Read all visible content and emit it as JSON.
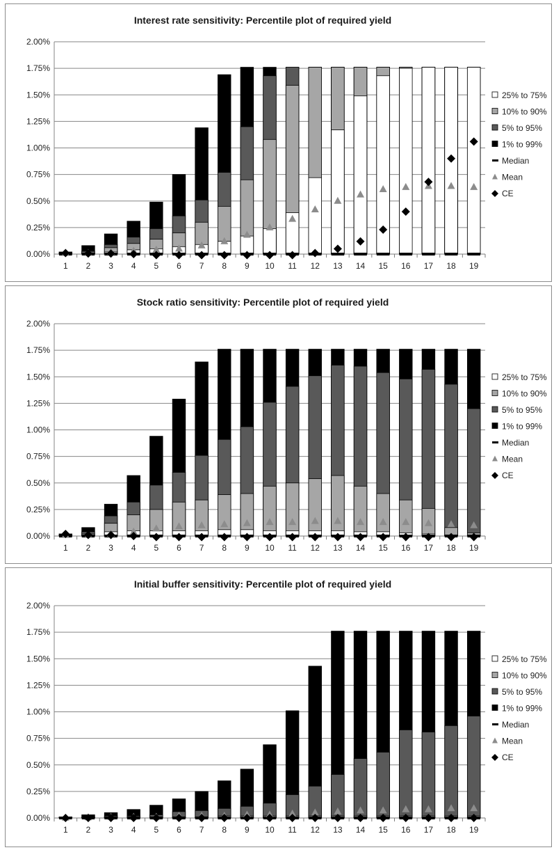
{
  "chart_data": [
    {
      "type": "bar",
      "title": "Interest rate sensitivity: Percentile plot of required yield",
      "xlabel": "",
      "ylabel": "",
      "ylim": [
        0,
        0.02
      ],
      "yticks": [
        "0.00%",
        "0.25%",
        "0.50%",
        "0.75%",
        "1.00%",
        "1.25%",
        "1.50%",
        "1.75%",
        "2.00%"
      ],
      "categories": [
        "1",
        "2",
        "3",
        "4",
        "5",
        "6",
        "7",
        "8",
        "9",
        "10",
        "11",
        "12",
        "13",
        "14",
        "15",
        "16",
        "17",
        "18",
        "19"
      ],
      "grid": true,
      "legend_position": "right",
      "legend": [
        "25% to 75%",
        "10% to 90%",
        "5% to 95%",
        "1% to 99%",
        "Median",
        "Mean",
        "CE"
      ],
      "series": [
        {
          "name": "1% to 99%",
          "low": [
            0,
            0,
            0,
            0,
            0,
            0,
            0,
            0,
            0,
            0,
            0,
            0,
            0,
            0,
            0,
            0,
            0,
            0,
            0
          ],
          "high": [
            0.0002,
            0.0008,
            0.0019,
            0.0031,
            0.0049,
            0.0075,
            0.0119,
            0.0169,
            0.0176,
            0.0176,
            0.0176,
            0.0176,
            0.0176,
            0.0176,
            0.0176,
            0.0176,
            0.0176,
            0.0176,
            0.0176
          ]
        },
        {
          "name": "5% to 95%",
          "low": [
            0,
            0,
            0,
            0,
            0,
            0,
            0,
            0,
            0,
            0,
            0,
            0,
            0,
            0,
            0,
            0,
            0,
            0,
            0
          ],
          "high": [
            0.0001,
            0.0003,
            0.0009,
            0.0016,
            0.0024,
            0.0036,
            0.0051,
            0.0077,
            0.012,
            0.0168,
            0.0176,
            0.0176,
            0.0176,
            0.0176,
            0.0176,
            0.0176,
            0.0176,
            0.0176,
            0.0176
          ]
        },
        {
          "name": "10% to 90%",
          "low": [
            0,
            0,
            0,
            0,
            0,
            0,
            0,
            0,
            0,
            0,
            0,
            0,
            0,
            0,
            0,
            0,
            0,
            0,
            0
          ],
          "high": [
            5e-05,
            0.0002,
            0.0006,
            0.001,
            0.0014,
            0.002,
            0.003,
            0.0045,
            0.007,
            0.0108,
            0.0159,
            0.0176,
            0.0176,
            0.0176,
            0.0176,
            0.0176,
            0.0176,
            0.0176,
            0.0176
          ]
        },
        {
          "name": "25% to 75%",
          "low": [
            0,
            0,
            0,
            0,
            0,
            0,
            0,
            0,
            0,
            0,
            0,
            0,
            0,
            0,
            0,
            0,
            0,
            0,
            0
          ],
          "high": [
            2e-05,
            0.0001,
            0.0002,
            0.0004,
            0.0005,
            0.0007,
            0.0009,
            0.0012,
            0.0017,
            0.0024,
            0.0039,
            0.0072,
            0.0117,
            0.0149,
            0.0168,
            0.0175,
            0.0176,
            0.0176,
            0.0176
          ]
        },
        {
          "name": "Median",
          "values": [
            0,
            0,
            0,
            0,
            0,
            0,
            0,
            0,
            0,
            0,
            0,
            0,
            0,
            0,
            0,
            0,
            0,
            0,
            0
          ]
        },
        {
          "name": "Mean",
          "values": [
            0.0001,
            0.0001,
            0.0002,
            0.0003,
            0.0004,
            0.0005,
            0.0008,
            0.0012,
            0.0018,
            0.0025,
            0.0033,
            0.0042,
            0.005,
            0.0056,
            0.0061,
            0.0063,
            0.0064,
            0.0064,
            0.0063
          ]
        },
        {
          "name": "CE",
          "values": [
            0.0001,
            5e-05,
            5e-05,
            0,
            -0.0001,
            -0.0001,
            -0.0001,
            -0.0001,
            -0.0001,
            -0.0001,
            -0.0001,
            0.0001,
            0.0005,
            0.0012,
            0.0023,
            0.004,
            0.0068,
            0.009,
            0.0106
          ]
        }
      ]
    },
    {
      "type": "bar",
      "title": "Stock ratio sensitivity: Percentile plot of required yield",
      "xlabel": "",
      "ylabel": "",
      "ylim": [
        0,
        0.02
      ],
      "yticks": [
        "0.00%",
        "0.25%",
        "0.50%",
        "0.75%",
        "1.00%",
        "1.25%",
        "1.50%",
        "1.75%",
        "2.00%"
      ],
      "categories": [
        "1",
        "2",
        "3",
        "4",
        "5",
        "6",
        "7",
        "8",
        "9",
        "10",
        "11",
        "12",
        "13",
        "14",
        "15",
        "16",
        "17",
        "18",
        "19"
      ],
      "grid": true,
      "legend_position": "right",
      "legend": [
        "25% to 75%",
        "10% to 90%",
        "5% to 95%",
        "1% to 99%",
        "Median",
        "Mean",
        "CE"
      ],
      "series": [
        {
          "name": "1% to 99%",
          "low": [
            0,
            0,
            0,
            0,
            0,
            0,
            0,
            0,
            0,
            0,
            0,
            0,
            0,
            0,
            0,
            0,
            0,
            0,
            0
          ],
          "high": [
            0.0002,
            0.0008,
            0.003,
            0.0057,
            0.0094,
            0.0129,
            0.0164,
            0.0176,
            0.0176,
            0.0176,
            0.0176,
            0.0176,
            0.0176,
            0.0176,
            0.0176,
            0.0176,
            0.0176,
            0.0176,
            0.0176
          ]
        },
        {
          "name": "5% to 95%",
          "low": [
            0,
            0,
            0,
            0,
            0,
            0,
            0,
            0,
            0,
            0,
            0,
            0,
            0,
            0,
            0,
            0,
            0,
            0,
            0
          ],
          "high": [
            0.0001,
            0.0004,
            0.0019,
            0.0032,
            0.0048,
            0.006,
            0.0076,
            0.0091,
            0.0103,
            0.0126,
            0.0141,
            0.0151,
            0.0161,
            0.016,
            0.0154,
            0.0148,
            0.0157,
            0.0143,
            0.012
          ]
        },
        {
          "name": "10% to 90%",
          "low": [
            0,
            0,
            0,
            0,
            0,
            0,
            0,
            0,
            0,
            0,
            0,
            0,
            0,
            0,
            0,
            0,
            0,
            0,
            0
          ],
          "high": [
            5e-05,
            0.0002,
            0.0012,
            0.002,
            0.0025,
            0.0032,
            0.0034,
            0.0039,
            0.004,
            0.0047,
            0.005,
            0.0054,
            0.0057,
            0.0047,
            0.004,
            0.0034,
            0.0026,
            0.0008,
            0.0003
          ]
        },
        {
          "name": "25% to 75%",
          "low": [
            0,
            0,
            0,
            0,
            0,
            0,
            0,
            0,
            0,
            0,
            0,
            0,
            0,
            0,
            0,
            0,
            0,
            0,
            0
          ],
          "high": [
            2e-05,
            0.0001,
            0.0004,
            0.0005,
            0.0005,
            0.0005,
            0.0005,
            0.0006,
            0.0006,
            0.0005,
            0.0005,
            0.0005,
            0.0005,
            0.0004,
            0.0004,
            0.0003,
            0.0002,
            0.0001,
            5e-05
          ]
        },
        {
          "name": "Median",
          "values": [
            0,
            0,
            0,
            0,
            0,
            0,
            0,
            0,
            0,
            0,
            0,
            0,
            0,
            0,
            0,
            0,
            0,
            0,
            0
          ]
        },
        {
          "name": "Mean",
          "values": [
            0.0001,
            0.0001,
            0.0002,
            0.0004,
            0.0007,
            0.0009,
            0.001,
            0.0011,
            0.0012,
            0.0013,
            0.0013,
            0.0014,
            0.0014,
            0.0013,
            0.0013,
            0.0013,
            0.0012,
            0.0011,
            0.001
          ]
        },
        {
          "name": "CE",
          "values": [
            0.0002,
            0.0001,
            0.0001,
            0,
            -0.0001,
            -0.0001,
            -0.0001,
            -0.0001,
            -0.0001,
            -0.0001,
            -0.0001,
            -0.0001,
            -0.0001,
            -0.0001,
            -0.0001,
            -0.0001,
            -0.0001,
            -0.0001,
            -0.0001
          ]
        }
      ]
    },
    {
      "type": "bar",
      "title": "Initial buffer sensitivity: Percentile plot of required yield",
      "xlabel": "",
      "ylabel": "",
      "ylim": [
        0,
        0.02
      ],
      "yticks": [
        "0.00%",
        "0.25%",
        "0.50%",
        "0.75%",
        "1.00%",
        "1.25%",
        "1.50%",
        "1.75%",
        "2.00%"
      ],
      "categories": [
        "1",
        "2",
        "3",
        "4",
        "5",
        "6",
        "7",
        "8",
        "9",
        "10",
        "11",
        "12",
        "13",
        "14",
        "15",
        "16",
        "17",
        "18",
        "19"
      ],
      "grid": true,
      "legend_position": "right",
      "legend": [
        "25% to 75%",
        "10% to 90%",
        "5% to 95%",
        "1% to 99%",
        "Median",
        "Mean",
        "CE"
      ],
      "series": [
        {
          "name": "1% to 99%",
          "low": [
            0,
            0,
            0,
            0,
            0,
            0,
            0,
            0,
            0,
            0,
            0,
            0,
            0,
            0,
            0,
            0,
            0,
            0,
            0
          ],
          "high": [
            0.0001,
            0.0003,
            0.0005,
            0.0008,
            0.0012,
            0.0018,
            0.0025,
            0.0035,
            0.0046,
            0.0069,
            0.0101,
            0.0143,
            0.0176,
            0.0176,
            0.0176,
            0.0176,
            0.0176,
            0.0176,
            0.0176
          ]
        },
        {
          "name": "5% to 95%",
          "low": [
            0,
            0,
            0,
            0,
            0,
            0,
            0,
            0,
            0,
            0,
            0,
            0,
            0,
            0,
            0,
            0,
            0,
            0,
            0
          ],
          "high": [
            5e-05,
            0.0001,
            0.0002,
            0.0002,
            0.0003,
            0.0006,
            0.0007,
            0.0009,
            0.0011,
            0.0014,
            0.0022,
            0.003,
            0.0041,
            0.0056,
            0.0062,
            0.0083,
            0.0081,
            0.0087,
            0.0096
          ]
        },
        {
          "name": "10% to 90%",
          "low": [
            0,
            0,
            0,
            0,
            0,
            0,
            0,
            0,
            0,
            0,
            0,
            0,
            0,
            0,
            0,
            0,
            0,
            0,
            0
          ],
          "high": [
            2e-05,
            5e-05,
            0.0001,
            0.0001,
            0.0001,
            0.0001,
            0.0001,
            0.0002,
            0.0002,
            0.0002,
            0.0002,
            0.0002,
            0.0002,
            0.0002,
            0.0002,
            0.0002,
            0.0002,
            0.0002,
            0.0002
          ]
        },
        {
          "name": "25% to 75%",
          "low": [
            0,
            0,
            0,
            0,
            0,
            0,
            0,
            0,
            0,
            0,
            0,
            0,
            0,
            0,
            0,
            0,
            0,
            0,
            0
          ],
          "high": [
            1e-05,
            2e-05,
            3e-05,
            4e-05,
            5e-05,
            5e-05,
            5e-05,
            5e-05,
            5e-05,
            5e-05,
            5e-05,
            5e-05,
            5e-05,
            5e-05,
            5e-05,
            5e-05,
            5e-05,
            5e-05,
            5e-05
          ]
        },
        {
          "name": "Median",
          "values": [
            0,
            0,
            0,
            0,
            0,
            0,
            0,
            0,
            0,
            0,
            0,
            0,
            0,
            0,
            0,
            0,
            0,
            0,
            0
          ]
        },
        {
          "name": "Mean",
          "values": [
            2e-05,
            5e-05,
            0.0001,
            0.0001,
            0.0001,
            0.0002,
            0.0002,
            0.0002,
            0.0003,
            0.0003,
            0.0004,
            0.0005,
            0.0006,
            0.0007,
            0.0007,
            0.0008,
            0.0008,
            0.0009,
            0.0009
          ]
        },
        {
          "name": "CE",
          "values": [
            0,
            0,
            0,
            0,
            0,
            0,
            0,
            0,
            0,
            0,
            0,
            0,
            0,
            0,
            0,
            0,
            0,
            0,
            0
          ]
        }
      ]
    }
  ],
  "style": {
    "colors": {
      "25% to 75%": "#ffffff",
      "10% to 90%": "#a6a6a6",
      "5% to 95%": "#595959",
      "1% to 99%": "#000000",
      "Median": "#000000",
      "Mean": "#8c8c8c",
      "CE": "#000000",
      "grid": "#868686",
      "panel_border": "#8c8c8c"
    }
  }
}
